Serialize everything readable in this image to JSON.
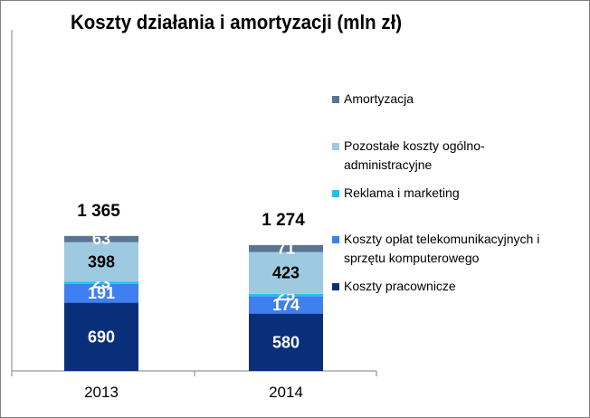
{
  "title": "Koszty działania i amortyzacji (mln zł)",
  "chart_data": {
    "type": "bar",
    "stacked": true,
    "title": "Koszty działania i amortyzacji (mln zł)",
    "xlabel": "",
    "ylabel": "",
    "categories": [
      "2013",
      "2014"
    ],
    "totals": [
      "1 365",
      "1 274"
    ],
    "series": [
      {
        "name": "Koszty  pracownicze",
        "values": [
          690,
          580
        ],
        "color": "#0a2f7a",
        "label_color": "#ffffff"
      },
      {
        "name": "Koszty opłat telekomunikacyjnych i sprzętu komputerowego",
        "values": [
          191,
          174
        ],
        "color": "#3f7ff0",
        "label_color": "#ffffff"
      },
      {
        "name": "Reklama i marketing",
        "values": [
          23,
          25
        ],
        "color": "#18c6ef",
        "label_color": "#ffffff"
      },
      {
        "name": "Pozostałe koszty ogólno-administracyjne",
        "values": [
          398,
          423
        ],
        "color": "#9ecae1",
        "label_color": "#000000"
      },
      {
        "name": "Amortyzacja",
        "values": [
          63,
          71
        ],
        "color": "#5a7594",
        "label_color": "#ffffff"
      }
    ],
    "legend_order": [
      "Amortyzacja",
      "Pozostałe koszty ogólno-administracyjne",
      "Reklama i marketing",
      "Koszty opłat telekomunikacyjnych i sprzętu komputerowego",
      "Koszty  pracownicze"
    ],
    "legend_lines": [
      [
        "Amortyzacja"
      ],
      [
        "Pozostałe koszty ogólno-",
        "administracyjne"
      ],
      [
        "Reklama i marketing"
      ],
      [
        "Koszty opłat telekomunikacyjnych i",
        "sprzętu komputerowego"
      ],
      [
        "Koszty  pracownicze"
      ]
    ],
    "legend_colors": [
      "#5a7594",
      "#9ecae1",
      "#18c6ef",
      "#3f7ff0",
      "#0a2f7a"
    ],
    "legend_position": "right",
    "grid": false
  }
}
